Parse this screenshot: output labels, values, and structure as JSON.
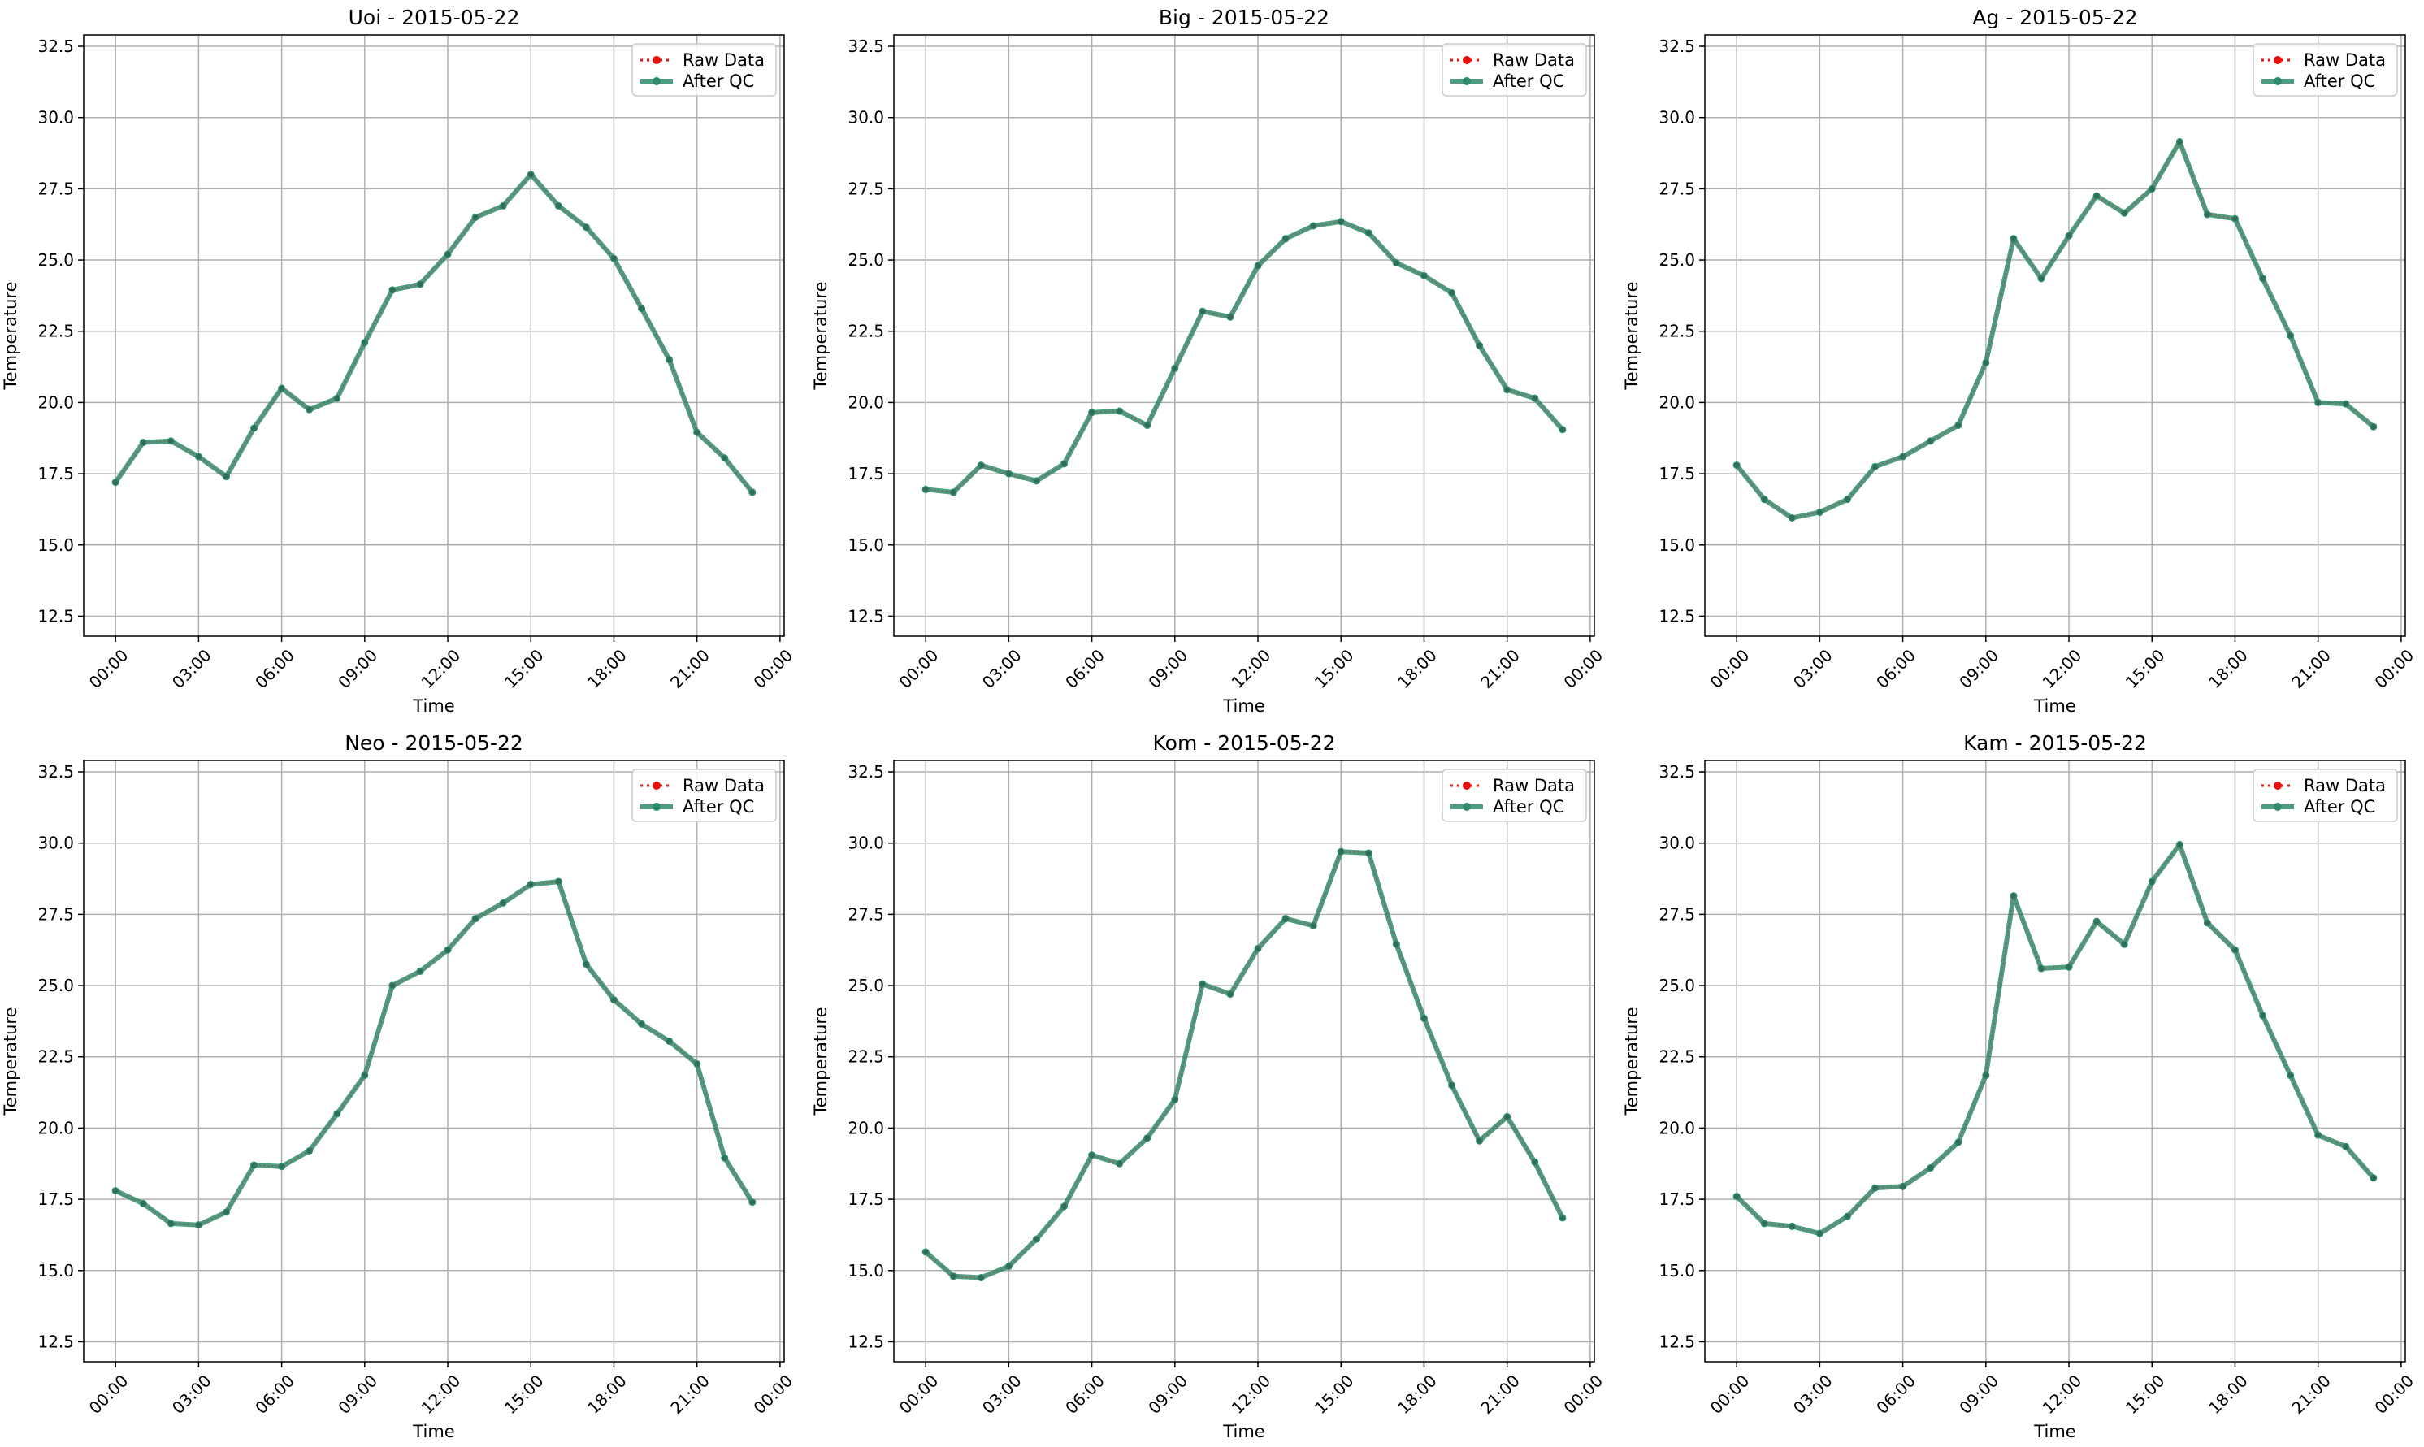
{
  "x_ticks": [
    "00:00",
    "03:00",
    "06:00",
    "09:00",
    "12:00",
    "15:00",
    "18:00",
    "21:00",
    "00:00"
  ],
  "y_ticks": [
    "12.5",
    "15.0",
    "17.5",
    "20.0",
    "22.5",
    "25.0",
    "27.5",
    "30.0",
    "32.5"
  ],
  "legend": {
    "raw_label": "Raw Data",
    "qc_label": "After QC"
  },
  "colors": {
    "raw": "#e8100c",
    "qc": "#2d8c6b",
    "grid": "#b0b0b0"
  },
  "chart_data": [
    {
      "type": "line",
      "title": "Uoi - 2015-05-22",
      "xlabel": "Time",
      "ylabel": "Temperature",
      "ylim": [
        11.8,
        32.9
      ],
      "legend_position": "top-right",
      "grid": true,
      "x": [
        "00:00",
        "01:00",
        "02:00",
        "03:00",
        "04:00",
        "05:00",
        "06:00",
        "07:00",
        "08:00",
        "09:00",
        "10:00",
        "11:00",
        "12:00",
        "13:00",
        "14:00",
        "15:00",
        "16:00",
        "17:00",
        "18:00",
        "19:00",
        "20:00",
        "21:00",
        "22:00",
        "23:00"
      ],
      "series": [
        {
          "name": "Raw Data",
          "values": [
            17.2,
            18.6,
            18.65,
            18.1,
            17.4,
            19.1,
            20.5,
            19.75,
            20.15,
            22.1,
            23.95,
            24.15,
            25.2,
            26.5,
            26.9,
            28.0,
            26.9,
            26.15,
            25.05,
            23.3,
            21.5,
            18.95,
            18.05,
            16.85
          ]
        },
        {
          "name": "After QC",
          "values": [
            17.2,
            18.6,
            18.65,
            18.1,
            17.4,
            19.1,
            20.5,
            19.75,
            20.15,
            22.1,
            23.95,
            24.15,
            25.2,
            26.5,
            26.9,
            28.0,
            26.9,
            26.15,
            25.05,
            23.3,
            21.5,
            18.95,
            18.05,
            16.85
          ]
        }
      ]
    },
    {
      "type": "line",
      "title": "Big - 2015-05-22",
      "xlabel": "Time",
      "ylabel": "Temperature",
      "ylim": [
        11.8,
        32.9
      ],
      "legend_position": "top-right",
      "grid": true,
      "x": [
        "00:00",
        "01:00",
        "02:00",
        "03:00",
        "04:00",
        "05:00",
        "06:00",
        "07:00",
        "08:00",
        "09:00",
        "10:00",
        "11:00",
        "12:00",
        "13:00",
        "14:00",
        "15:00",
        "16:00",
        "17:00",
        "18:00",
        "19:00",
        "20:00",
        "21:00",
        "22:00",
        "23:00"
      ],
      "series": [
        {
          "name": "Raw Data",
          "values": [
            16.95,
            16.85,
            17.8,
            17.5,
            17.25,
            17.85,
            19.65,
            19.7,
            19.2,
            21.2,
            23.2,
            23.0,
            24.8,
            25.75,
            26.2,
            26.35,
            25.95,
            24.9,
            24.45,
            23.85,
            22.0,
            20.45,
            20.15,
            19.05
          ]
        },
        {
          "name": "After QC",
          "values": [
            16.95,
            16.85,
            17.8,
            17.5,
            17.25,
            17.85,
            19.65,
            19.7,
            19.2,
            21.2,
            23.2,
            23.0,
            24.8,
            25.75,
            26.2,
            26.35,
            25.95,
            24.9,
            24.45,
            23.85,
            22.0,
            20.45,
            20.15,
            19.05
          ]
        }
      ]
    },
    {
      "type": "line",
      "title": "Ag - 2015-05-22",
      "xlabel": "Time",
      "ylabel": "Temperature",
      "ylim": [
        11.8,
        32.9
      ],
      "legend_position": "top-right",
      "grid": true,
      "x": [
        "00:00",
        "01:00",
        "02:00",
        "03:00",
        "04:00",
        "05:00",
        "06:00",
        "07:00",
        "08:00",
        "09:00",
        "10:00",
        "11:00",
        "12:00",
        "13:00",
        "14:00",
        "15:00",
        "16:00",
        "17:00",
        "18:00",
        "19:00",
        "20:00",
        "21:00",
        "22:00",
        "23:00"
      ],
      "series": [
        {
          "name": "Raw Data",
          "values": [
            17.8,
            16.6,
            15.95,
            16.15,
            16.6,
            17.75,
            18.1,
            18.65,
            19.2,
            21.4,
            25.75,
            24.35,
            25.85,
            27.25,
            26.65,
            27.5,
            29.15,
            26.6,
            26.45,
            24.35,
            22.35,
            20.0,
            19.95,
            19.15
          ]
        },
        {
          "name": "After QC",
          "values": [
            17.8,
            16.6,
            15.95,
            16.15,
            16.6,
            17.75,
            18.1,
            18.65,
            19.2,
            21.4,
            25.75,
            24.35,
            25.85,
            27.25,
            26.65,
            27.5,
            29.15,
            26.6,
            26.45,
            24.35,
            22.35,
            20.0,
            19.95,
            19.15
          ]
        }
      ]
    },
    {
      "type": "line",
      "title": "Neo - 2015-05-22",
      "xlabel": "Time",
      "ylabel": "Temperature",
      "ylim": [
        11.8,
        32.9
      ],
      "legend_position": "top-right",
      "grid": true,
      "x": [
        "00:00",
        "01:00",
        "02:00",
        "03:00",
        "04:00",
        "05:00",
        "06:00",
        "07:00",
        "08:00",
        "09:00",
        "10:00",
        "11:00",
        "12:00",
        "13:00",
        "14:00",
        "15:00",
        "16:00",
        "17:00",
        "18:00",
        "19:00",
        "20:00",
        "21:00",
        "22:00",
        "23:00"
      ],
      "series": [
        {
          "name": "Raw Data",
          "values": [
            17.8,
            17.35,
            16.65,
            16.6,
            17.05,
            18.7,
            18.65,
            19.2,
            20.5,
            21.85,
            25.0,
            25.5,
            26.25,
            27.35,
            27.9,
            28.55,
            28.65,
            25.75,
            24.5,
            23.65,
            23.05,
            22.25,
            18.95,
            17.4
          ]
        },
        {
          "name": "After QC",
          "values": [
            17.8,
            17.35,
            16.65,
            16.6,
            17.05,
            18.7,
            18.65,
            19.2,
            20.5,
            21.85,
            25.0,
            25.5,
            26.25,
            27.35,
            27.9,
            28.55,
            28.65,
            25.75,
            24.5,
            23.65,
            23.05,
            22.25,
            18.95,
            17.4
          ]
        }
      ]
    },
    {
      "type": "line",
      "title": "Kom - 2015-05-22",
      "xlabel": "Time",
      "ylabel": "Temperature",
      "ylim": [
        11.8,
        32.9
      ],
      "legend_position": "top-right",
      "grid": true,
      "x": [
        "00:00",
        "01:00",
        "02:00",
        "03:00",
        "04:00",
        "05:00",
        "06:00",
        "07:00",
        "08:00",
        "09:00",
        "10:00",
        "11:00",
        "12:00",
        "13:00",
        "14:00",
        "15:00",
        "16:00",
        "17:00",
        "18:00",
        "19:00",
        "20:00",
        "21:00",
        "22:00",
        "23:00"
      ],
      "series": [
        {
          "name": "Raw Data",
          "values": [
            15.65,
            14.8,
            14.75,
            15.15,
            16.1,
            17.25,
            19.05,
            18.75,
            19.65,
            21.0,
            25.05,
            24.7,
            26.3,
            27.35,
            27.1,
            29.7,
            29.65,
            26.45,
            23.85,
            21.5,
            19.55,
            20.4,
            18.8,
            16.85
          ]
        },
        {
          "name": "After QC",
          "values": [
            15.65,
            14.8,
            14.75,
            15.15,
            16.1,
            17.25,
            19.05,
            18.75,
            19.65,
            21.0,
            25.05,
            24.7,
            26.3,
            27.35,
            27.1,
            29.7,
            29.65,
            26.45,
            23.85,
            21.5,
            19.55,
            20.4,
            18.8,
            16.85
          ]
        }
      ]
    },
    {
      "type": "line",
      "title": "Kam - 2015-05-22",
      "xlabel": "Time",
      "ylabel": "Temperature",
      "ylim": [
        11.8,
        32.9
      ],
      "legend_position": "top-right",
      "grid": true,
      "x": [
        "00:00",
        "01:00",
        "02:00",
        "03:00",
        "04:00",
        "05:00",
        "06:00",
        "07:00",
        "08:00",
        "09:00",
        "10:00",
        "11:00",
        "12:00",
        "13:00",
        "14:00",
        "15:00",
        "16:00",
        "17:00",
        "18:00",
        "19:00",
        "20:00",
        "21:00",
        "22:00",
        "23:00"
      ],
      "series": [
        {
          "name": "Raw Data",
          "values": [
            17.6,
            16.65,
            16.55,
            16.3,
            16.9,
            17.9,
            17.95,
            18.6,
            19.5,
            21.85,
            28.15,
            25.6,
            25.65,
            27.25,
            26.45,
            28.65,
            29.95,
            27.2,
            26.25,
            23.95,
            21.85,
            19.75,
            19.35,
            18.25
          ]
        },
        {
          "name": "After QC",
          "values": [
            17.6,
            16.65,
            16.55,
            16.3,
            16.9,
            17.9,
            17.95,
            18.6,
            19.5,
            21.85,
            28.15,
            25.6,
            25.65,
            27.25,
            26.45,
            28.65,
            29.95,
            27.2,
            26.25,
            23.95,
            21.85,
            19.75,
            19.35,
            18.25
          ]
        }
      ]
    }
  ]
}
